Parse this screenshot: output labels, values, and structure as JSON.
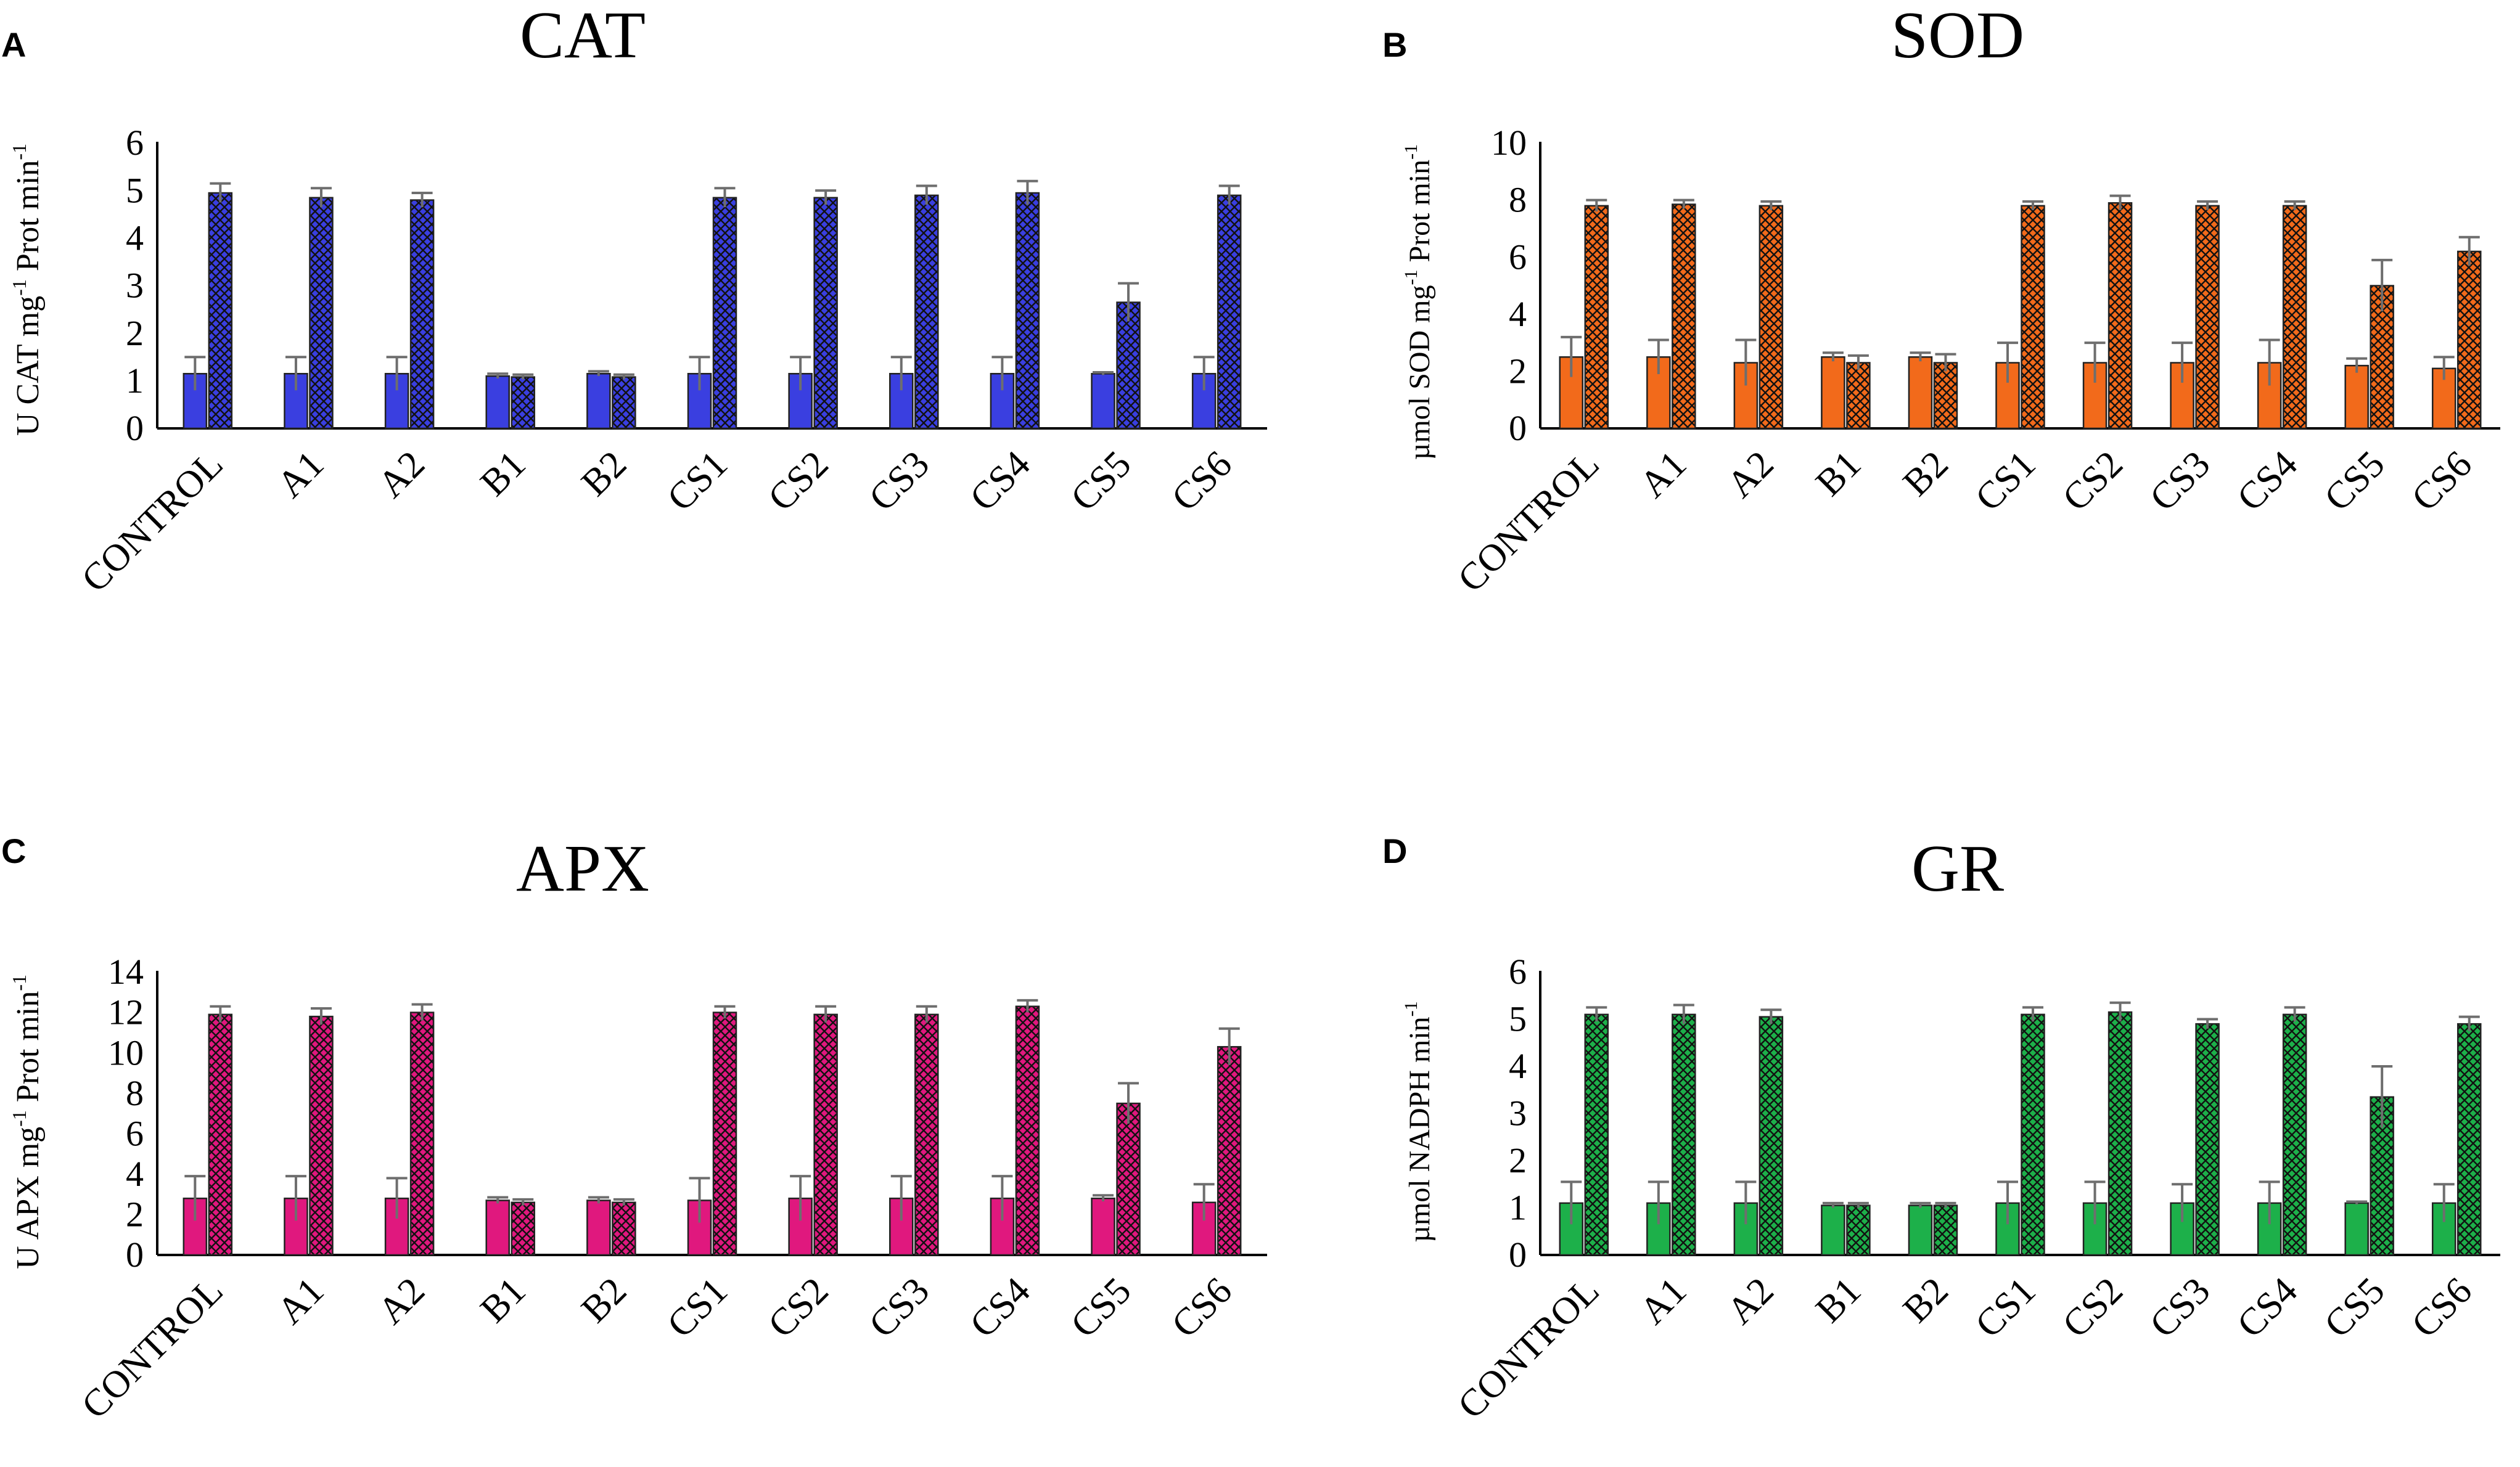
{
  "figure": {
    "categories": [
      "CONTROL",
      "A1",
      "A2",
      "B1",
      "B2",
      "CS1",
      "CS2",
      "CS3",
      "CS4",
      "CS5",
      "CS6"
    ]
  },
  "chart_data": [
    {
      "panel": "A",
      "type": "bar",
      "title": "CAT",
      "xlabel": "",
      "ylabel": "U CAT mg",
      "ylabel_sup1": "-1",
      "ylabel_mid": " Prot min",
      "ylabel_sup2": "-1",
      "categories": [
        "CONTROL",
        "A1",
        "A2",
        "B1",
        "B2",
        "CS1",
        "CS2",
        "CS3",
        "CS4",
        "CS5",
        "CS6"
      ],
      "ylim": [
        0,
        6
      ],
      "yticks": [
        0,
        1,
        2,
        3,
        4,
        5,
        6
      ],
      "color": "#3a3fe0",
      "series": [
        {
          "name": "series-1",
          "pattern": "solid",
          "values": [
            1.15,
            1.15,
            1.15,
            1.1,
            1.15,
            1.15,
            1.15,
            1.15,
            1.15,
            1.15,
            1.15
          ],
          "errors": [
            0.35,
            0.35,
            0.35,
            0.05,
            0.05,
            0.35,
            0.35,
            0.35,
            0.35,
            0.03,
            0.35
          ]
        },
        {
          "name": "series-2",
          "pattern": "hatched",
          "values": [
            4.95,
            4.85,
            4.8,
            1.08,
            1.08,
            4.85,
            4.85,
            4.9,
            4.95,
            2.65,
            4.9
          ],
          "errors": [
            0.2,
            0.2,
            0.15,
            0.05,
            0.05,
            0.2,
            0.15,
            0.2,
            0.25,
            0.4,
            0.2
          ]
        }
      ]
    },
    {
      "panel": "B",
      "type": "bar",
      "title": "SOD",
      "xlabel": "",
      "ylabel": "µmol SOD mg",
      "ylabel_sup1": "-1",
      "ylabel_mid": " Prot min",
      "ylabel_sup2": "-1",
      "categories": [
        "CONTROL",
        "A1",
        "A2",
        "B1",
        "B2",
        "CS1",
        "CS2",
        "CS3",
        "CS4",
        "CS5",
        "CS6"
      ],
      "ylim": [
        0,
        10
      ],
      "yticks": [
        0,
        2,
        4,
        6,
        8,
        10
      ],
      "color": "#f26a1b",
      "series": [
        {
          "name": "series-1",
          "pattern": "solid",
          "values": [
            2.5,
            2.5,
            2.3,
            2.5,
            2.5,
            2.3,
            2.3,
            2.3,
            2.3,
            2.2,
            2.1
          ],
          "errors": [
            0.7,
            0.6,
            0.8,
            0.15,
            0.15,
            0.7,
            0.7,
            0.7,
            0.8,
            0.25,
            0.4
          ]
        },
        {
          "name": "series-2",
          "pattern": "hatched",
          "values": [
            7.8,
            7.85,
            7.8,
            2.3,
            2.3,
            7.8,
            7.9,
            7.8,
            7.8,
            5.0,
            6.2
          ],
          "errors": [
            0.2,
            0.15,
            0.15,
            0.25,
            0.3,
            0.15,
            0.25,
            0.15,
            0.15,
            0.9,
            0.5
          ]
        }
      ]
    },
    {
      "panel": "C",
      "type": "bar",
      "title": "APX",
      "xlabel": "",
      "ylabel": "U APX mg",
      "ylabel_sup1": "-1",
      "ylabel_mid": " Prot min",
      "ylabel_sup2": "-1",
      "categories": [
        "CONTROL",
        "A1",
        "A2",
        "B1",
        "B2",
        "CS1",
        "CS2",
        "CS3",
        "CS4",
        "CS5",
        "CS6"
      ],
      "ylim": [
        0,
        14
      ],
      "yticks": [
        0,
        2,
        4,
        6,
        8,
        10,
        12,
        14
      ],
      "color": "#e0187e",
      "series": [
        {
          "name": "series-1",
          "pattern": "solid",
          "values": [
            2.8,
            2.8,
            2.8,
            2.7,
            2.7,
            2.7,
            2.8,
            2.8,
            2.8,
            2.8,
            2.6
          ],
          "errors": [
            1.1,
            1.1,
            1.0,
            0.15,
            0.15,
            1.1,
            1.1,
            1.1,
            1.1,
            0.15,
            0.9
          ]
        },
        {
          "name": "series-2",
          "pattern": "hatched",
          "values": [
            11.9,
            11.8,
            12.0,
            2.6,
            2.6,
            12.0,
            11.9,
            11.9,
            12.3,
            7.5,
            10.3
          ],
          "errors": [
            0.4,
            0.4,
            0.4,
            0.15,
            0.15,
            0.3,
            0.4,
            0.4,
            0.3,
            1.0,
            0.9
          ]
        }
      ]
    },
    {
      "panel": "D",
      "type": "bar",
      "title": "GR",
      "xlabel": "",
      "ylabel": "µmol NADPH  min",
      "ylabel_sup1": "",
      "ylabel_mid": "",
      "ylabel_sup2": "-1",
      "categories": [
        "CONTROL",
        "A1",
        "A2",
        "B1",
        "B2",
        "CS1",
        "CS2",
        "CS3",
        "CS4",
        "CS5",
        "CS6"
      ],
      "ylim": [
        0,
        6
      ],
      "yticks": [
        0,
        1,
        2,
        3,
        4,
        5,
        6
      ],
      "color": "#1db04a",
      "series": [
        {
          "name": "series-1",
          "pattern": "solid",
          "values": [
            1.1,
            1.1,
            1.1,
            1.05,
            1.05,
            1.1,
            1.1,
            1.1,
            1.1,
            1.1,
            1.1
          ],
          "errors": [
            0.45,
            0.45,
            0.45,
            0.05,
            0.05,
            0.45,
            0.45,
            0.4,
            0.45,
            0.03,
            0.4
          ]
        },
        {
          "name": "series-2",
          "pattern": "hatched",
          "values": [
            5.1,
            5.1,
            5.05,
            1.05,
            1.05,
            5.1,
            5.15,
            4.9,
            5.1,
            3.35,
            4.9
          ],
          "errors": [
            0.15,
            0.2,
            0.15,
            0.05,
            0.05,
            0.15,
            0.2,
            0.1,
            0.15,
            0.65,
            0.15
          ]
        }
      ]
    }
  ]
}
